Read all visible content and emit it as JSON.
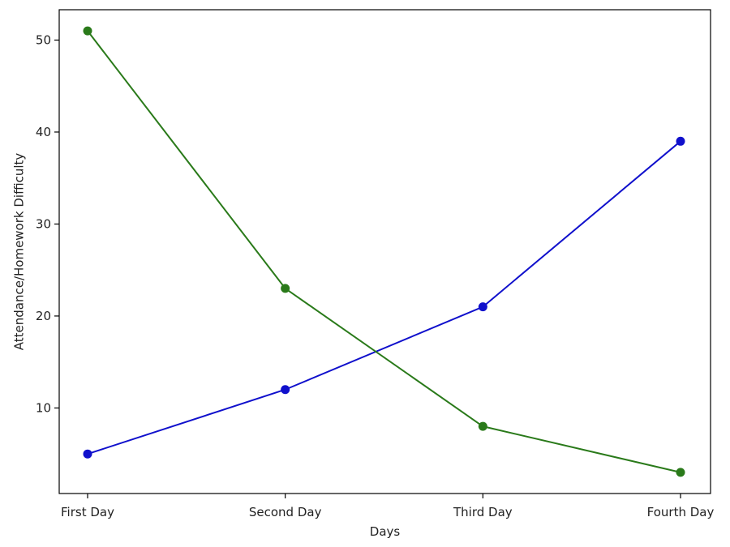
{
  "chart_data": {
    "type": "line",
    "categories": [
      "First Day",
      "Second Day",
      "Third Day",
      "Fourth Day"
    ],
    "series": [
      {
        "values": [
          5,
          12,
          21,
          39
        ],
        "color": "#1010cc"
      },
      {
        "values": [
          51,
          23,
          8,
          3
        ],
        "color": "#2a7a1a"
      }
    ],
    "xlabel": "Days",
    "ylabel": "Attendance/Homework Difficulty",
    "ylim": [
      0.7,
      53.3
    ],
    "yticks": [
      10,
      20,
      30,
      40,
      50
    ],
    "grid": false,
    "marker": "circle"
  }
}
